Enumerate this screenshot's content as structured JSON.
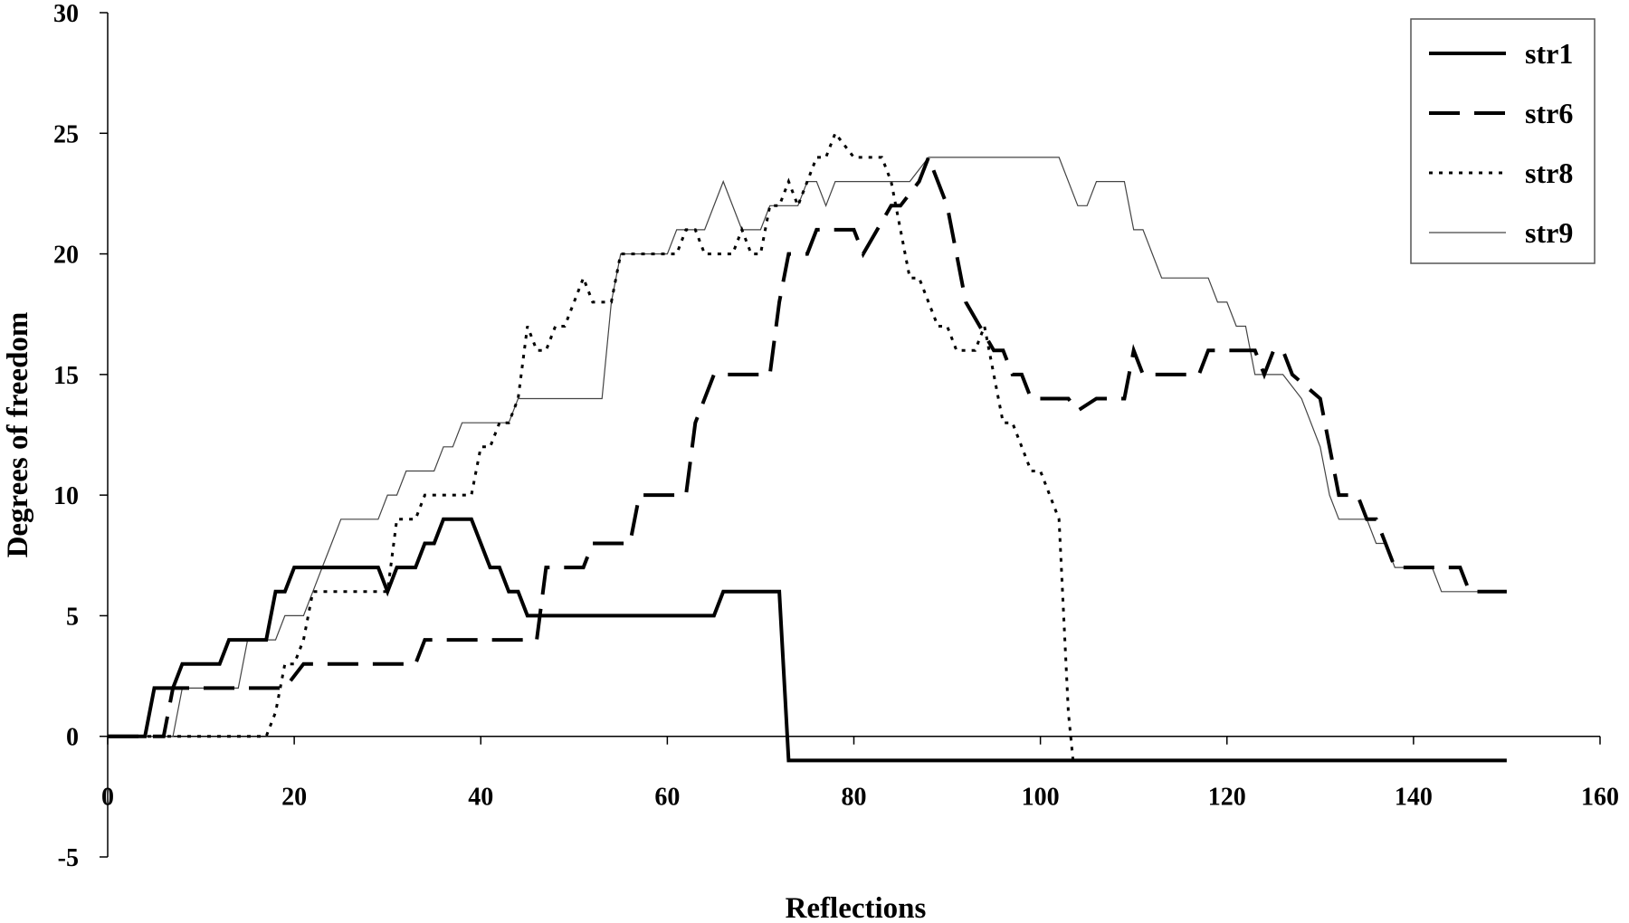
{
  "chart_data": {
    "type": "line",
    "title": "",
    "xlabel": "Reflections",
    "ylabel": "Degrees of freedom",
    "xlim": [
      0,
      160
    ],
    "ylim": [
      -5,
      30
    ],
    "xticks": [
      0,
      20,
      40,
      60,
      80,
      100,
      120,
      140,
      160
    ],
    "yticks": [
      -5,
      0,
      5,
      10,
      15,
      20,
      25,
      30
    ],
    "grid": false,
    "legend_position": "top-right",
    "series": [
      {
        "name": "str1",
        "style": "solid-thick",
        "points": [
          [
            0,
            0
          ],
          [
            4,
            0
          ],
          [
            5,
            2
          ],
          [
            7,
            2
          ],
          [
            8,
            3
          ],
          [
            12,
            3
          ],
          [
            13,
            4
          ],
          [
            17,
            4
          ],
          [
            18,
            6
          ],
          [
            19,
            6
          ],
          [
            20,
            7
          ],
          [
            29,
            7
          ],
          [
            30,
            6
          ],
          [
            31,
            7
          ],
          [
            33,
            7
          ],
          [
            34,
            8
          ],
          [
            35,
            8
          ],
          [
            36,
            9
          ],
          [
            39,
            9
          ],
          [
            40,
            8
          ],
          [
            41,
            7
          ],
          [
            42,
            7
          ],
          [
            43,
            6
          ],
          [
            44,
            6
          ],
          [
            45,
            5
          ],
          [
            65,
            5
          ],
          [
            66,
            6
          ],
          [
            72,
            6
          ],
          [
            73,
            -1
          ],
          [
            150,
            -1
          ]
        ]
      },
      {
        "name": "str6",
        "style": "long-dash",
        "points": [
          [
            0,
            0
          ],
          [
            6,
            0
          ],
          [
            7,
            2
          ],
          [
            19,
            2
          ],
          [
            21,
            3
          ],
          [
            33,
            3
          ],
          [
            34,
            4
          ],
          [
            46,
            4
          ],
          [
            47,
            7
          ],
          [
            51,
            7
          ],
          [
            52,
            8
          ],
          [
            56,
            8
          ],
          [
            57,
            10
          ],
          [
            62,
            10
          ],
          [
            63,
            13
          ],
          [
            65,
            15
          ],
          [
            71,
            15
          ],
          [
            72,
            18
          ],
          [
            73,
            20
          ],
          [
            75,
            20
          ],
          [
            76,
            21
          ],
          [
            80,
            21
          ],
          [
            81,
            20
          ],
          [
            84,
            22
          ],
          [
            85,
            22
          ],
          [
            87,
            23
          ],
          [
            88,
            24
          ],
          [
            90,
            22
          ],
          [
            92,
            18
          ],
          [
            95,
            16
          ],
          [
            96,
            16
          ],
          [
            97,
            15
          ],
          [
            98,
            15
          ],
          [
            99,
            14
          ],
          [
            103,
            14
          ],
          [
            104,
            13.5
          ],
          [
            106,
            14
          ],
          [
            109,
            14
          ],
          [
            110,
            16
          ],
          [
            111,
            15
          ],
          [
            117,
            15
          ],
          [
            118,
            16
          ],
          [
            123,
            16
          ],
          [
            124,
            15
          ],
          [
            125,
            16
          ],
          [
            126,
            16
          ],
          [
            127,
            15
          ],
          [
            130,
            14
          ],
          [
            131,
            12
          ],
          [
            132,
            10
          ],
          [
            134,
            10
          ],
          [
            135,
            9
          ],
          [
            136,
            9
          ],
          [
            137,
            8
          ],
          [
            138,
            7
          ],
          [
            145,
            7
          ],
          [
            146,
            6
          ],
          [
            150,
            6
          ]
        ]
      },
      {
        "name": "str8",
        "style": "dotted",
        "points": [
          [
            0,
            0
          ],
          [
            17,
            0
          ],
          [
            18,
            1
          ],
          [
            19,
            3
          ],
          [
            20,
            3
          ],
          [
            21,
            4
          ],
          [
            22,
            6
          ],
          [
            30,
            6
          ],
          [
            31,
            9
          ],
          [
            33,
            9
          ],
          [
            34,
            10
          ],
          [
            39,
            10
          ],
          [
            40,
            12
          ],
          [
            41,
            12
          ],
          [
            42,
            13
          ],
          [
            43,
            13
          ],
          [
            44,
            14
          ],
          [
            45,
            17
          ],
          [
            46,
            16
          ],
          [
            47,
            16
          ],
          [
            48,
            17
          ],
          [
            49,
            17
          ],
          [
            50,
            18
          ],
          [
            51,
            19
          ],
          [
            52,
            18
          ],
          [
            54,
            18
          ],
          [
            55,
            20
          ],
          [
            61,
            20
          ],
          [
            62,
            21
          ],
          [
            63,
            21
          ],
          [
            64,
            20
          ],
          [
            67,
            20
          ],
          [
            68,
            21
          ],
          [
            69,
            20
          ],
          [
            70,
            20
          ],
          [
            71,
            22
          ],
          [
            72,
            22
          ],
          [
            73,
            23
          ],
          [
            74,
            22
          ],
          [
            75,
            23
          ],
          [
            76,
            24
          ],
          [
            77,
            24
          ],
          [
            78,
            25
          ],
          [
            80,
            24
          ],
          [
            82,
            24
          ],
          [
            83,
            24
          ],
          [
            84,
            23
          ],
          [
            85,
            21
          ],
          [
            86,
            19
          ],
          [
            87,
            19
          ],
          [
            89,
            17
          ],
          [
            90,
            17
          ],
          [
            91,
            16
          ],
          [
            92,
            16
          ],
          [
            93,
            16
          ],
          [
            94,
            17
          ],
          [
            95,
            15
          ],
          [
            96,
            13
          ],
          [
            97,
            13
          ],
          [
            98,
            12
          ],
          [
            99,
            11
          ],
          [
            100,
            11
          ],
          [
            101,
            10
          ],
          [
            102,
            9
          ],
          [
            103,
            1
          ],
          [
            103.5,
            -1
          ]
        ]
      },
      {
        "name": "str9",
        "style": "solid-thin",
        "points": [
          [
            0,
            0
          ],
          [
            7,
            0
          ],
          [
            8,
            2
          ],
          [
            14,
            2
          ],
          [
            15,
            4
          ],
          [
            17,
            4
          ],
          [
            18,
            4
          ],
          [
            19,
            5
          ],
          [
            20,
            5
          ],
          [
            21,
            5
          ],
          [
            22,
            6
          ],
          [
            23,
            7
          ],
          [
            24,
            8
          ],
          [
            25,
            9
          ],
          [
            29,
            9
          ],
          [
            30,
            10
          ],
          [
            31,
            10
          ],
          [
            32,
            11
          ],
          [
            35,
            11
          ],
          [
            36,
            12
          ],
          [
            37,
            12
          ],
          [
            38,
            13
          ],
          [
            43,
            13
          ],
          [
            44,
            14
          ],
          [
            53,
            14
          ],
          [
            54,
            18
          ],
          [
            55,
            20
          ],
          [
            60,
            20
          ],
          [
            61,
            21
          ],
          [
            64,
            21
          ],
          [
            66,
            23
          ],
          [
            68,
            21
          ],
          [
            70,
            21
          ],
          [
            71,
            22
          ],
          [
            74,
            22
          ],
          [
            75,
            23
          ],
          [
            76,
            23
          ],
          [
            77,
            22
          ],
          [
            78,
            23
          ],
          [
            86,
            23
          ],
          [
            88,
            24
          ],
          [
            102,
            24
          ],
          [
            104,
            22
          ],
          [
            105,
            22
          ],
          [
            106,
            23
          ],
          [
            109,
            23
          ],
          [
            110,
            21
          ],
          [
            111,
            21
          ],
          [
            112,
            20
          ],
          [
            113,
            19
          ],
          [
            118,
            19
          ],
          [
            119,
            18
          ],
          [
            120,
            18
          ],
          [
            121,
            17
          ],
          [
            122,
            17
          ],
          [
            123,
            15
          ],
          [
            126,
            15
          ],
          [
            128,
            14
          ],
          [
            130,
            12
          ],
          [
            131,
            10
          ],
          [
            132,
            9
          ],
          [
            135,
            9
          ],
          [
            136,
            8
          ],
          [
            137,
            8
          ],
          [
            138,
            7
          ],
          [
            142,
            7
          ],
          [
            143,
            6
          ],
          [
            145,
            6
          ],
          [
            146,
            6
          ],
          [
            150,
            6
          ]
        ]
      }
    ]
  }
}
